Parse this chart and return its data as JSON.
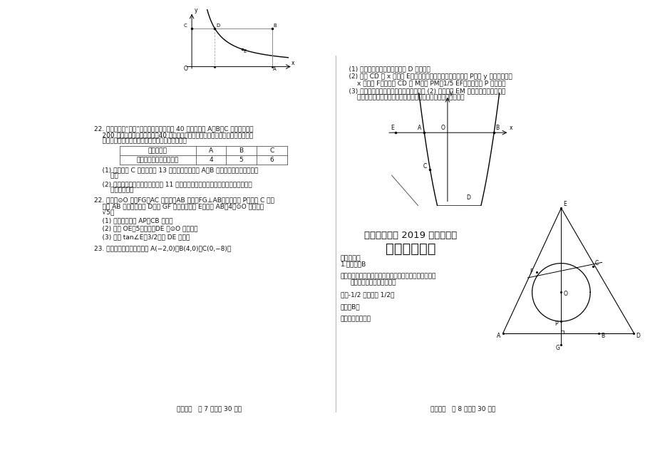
{
  "bg_color": "#ffffff",
  "left_page_num": "数学试卷   第 7 页（共 30 页）",
  "right_page_num": "数学试卷   第 8 页（共 30 页）",
  "title1": "四川省德阳市 2019 年中考试卷",
  "title2": "数学答案解析",
  "section1": "一、选择题",
  "ans1": "1.【答案】B",
  "ana1a": "【解析】根据相反数的概念：只有符号不同的两个数叫做",
  "ana1b": "    互为相反数即可得到答案．",
  "sol1": "解：-1/2 相反数是 1/2，",
  "sel1": "故选：B．",
  "pt1": "【考点】相反数．"
}
